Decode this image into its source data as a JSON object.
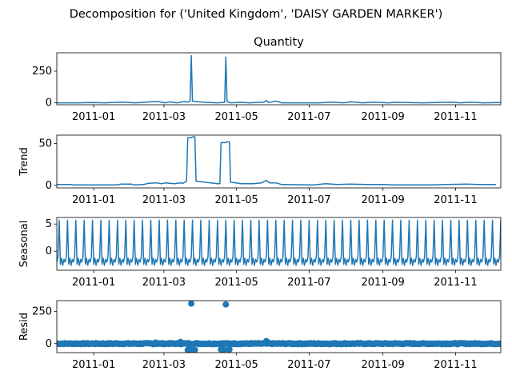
{
  "figure": {
    "suptitle": "Decomposition for ('United Kingdom', 'DAISY GARDEN MARKER')"
  },
  "chart_data": [
    {
      "type": "line",
      "title": "Quantity",
      "ylabel": "",
      "xlim": [
        "2010-12-01",
        "2011-12-09"
      ],
      "ylim": [
        -15,
        395
      ],
      "yticks": [
        0,
        250
      ],
      "xticks": [
        "2011-01",
        "2011-03",
        "2011-05",
        "2011-07",
        "2011-09",
        "2011-11"
      ],
      "color": "#1f77b4",
      "points": [
        [
          "2010-12-01",
          0
        ],
        [
          "2010-12-20",
          0
        ],
        [
          "2010-12-28",
          2
        ],
        [
          "2011-01-10",
          0
        ],
        [
          "2011-01-25",
          6
        ],
        [
          "2011-02-05",
          0
        ],
        [
          "2011-02-18",
          8
        ],
        [
          "2011-02-24",
          10
        ],
        [
          "2011-03-02",
          0
        ],
        [
          "2011-03-06",
          8
        ],
        [
          "2011-03-12",
          0
        ],
        [
          "2011-03-18",
          10
        ],
        [
          "2011-03-21",
          5
        ],
        [
          "2011-03-23",
          12
        ],
        [
          "2011-03-24",
          372
        ],
        [
          "2011-03-25",
          12
        ],
        [
          "2011-03-28",
          10
        ],
        [
          "2011-04-05",
          4
        ],
        [
          "2011-04-15",
          0
        ],
        [
          "2011-04-21",
          4
        ],
        [
          "2011-04-22",
          360
        ],
        [
          "2011-04-23",
          10
        ],
        [
          "2011-04-26",
          0
        ],
        [
          "2011-05-04",
          4
        ],
        [
          "2011-05-12",
          0
        ],
        [
          "2011-05-24",
          6
        ],
        [
          "2011-05-26",
          18
        ],
        [
          "2011-05-28",
          2
        ],
        [
          "2011-06-03",
          14
        ],
        [
          "2011-06-08",
          0
        ],
        [
          "2011-07-10",
          0
        ],
        [
          "2011-07-20",
          6
        ],
        [
          "2011-07-30",
          0
        ],
        [
          "2011-08-05",
          8
        ],
        [
          "2011-08-15",
          0
        ],
        [
          "2011-08-25",
          6
        ],
        [
          "2011-09-05",
          0
        ],
        [
          "2011-09-12",
          4
        ],
        [
          "2011-10-05",
          0
        ],
        [
          "2011-10-28",
          6
        ],
        [
          "2011-11-05",
          0
        ],
        [
          "2011-11-14",
          6
        ],
        [
          "2011-11-24",
          0
        ],
        [
          "2011-12-09",
          2
        ]
      ]
    },
    {
      "type": "line",
      "title": "",
      "ylabel": "Trend",
      "xlim": [
        "2010-12-01",
        "2011-12-09"
      ],
      "ylim": [
        -3,
        60
      ],
      "yticks": [
        0,
        50
      ],
      "xticks": [
        "2011-01",
        "2011-03",
        "2011-05",
        "2011-07",
        "2011-09",
        "2011-11"
      ],
      "color": "#1f77b4",
      "points": [
        [
          "2010-12-01",
          1
        ],
        [
          "2010-12-12",
          1
        ],
        [
          "2010-12-15",
          0.5
        ],
        [
          "2011-01-20",
          0.5
        ],
        [
          "2011-01-24",
          1.5
        ],
        [
          "2011-02-02",
          1.5
        ],
        [
          "2011-02-04",
          0.5
        ],
        [
          "2011-02-12",
          1
        ],
        [
          "2011-02-16",
          2.5
        ],
        [
          "2011-02-23",
          3
        ],
        [
          "2011-02-27",
          2
        ],
        [
          "2011-03-02",
          3
        ],
        [
          "2011-03-10",
          2
        ],
        [
          "2011-03-14",
          3
        ],
        [
          "2011-03-17",
          2.5
        ],
        [
          "2011-03-20",
          5
        ],
        [
          "2011-03-21",
          57
        ],
        [
          "2011-03-24",
          57
        ],
        [
          "2011-03-25",
          58
        ],
        [
          "2011-03-27",
          58
        ],
        [
          "2011-03-28",
          5
        ],
        [
          "2011-04-15",
          2
        ],
        [
          "2011-04-17",
          2
        ],
        [
          "2011-04-18",
          51
        ],
        [
          "2011-04-22",
          51
        ],
        [
          "2011-04-23",
          52
        ],
        [
          "2011-04-25",
          52
        ],
        [
          "2011-04-26",
          4
        ],
        [
          "2011-05-05",
          2
        ],
        [
          "2011-05-15",
          2
        ],
        [
          "2011-05-22",
          3
        ],
        [
          "2011-05-26",
          6
        ],
        [
          "2011-05-29",
          3
        ],
        [
          "2011-06-03",
          3
        ],
        [
          "2011-06-08",
          1
        ],
        [
          "2011-07-05",
          0.5
        ],
        [
          "2011-07-15",
          2
        ],
        [
          "2011-07-25",
          1
        ],
        [
          "2011-08-05",
          1.5
        ],
        [
          "2011-08-18",
          1
        ],
        [
          "2011-09-01",
          1
        ],
        [
          "2011-09-10",
          0.5
        ],
        [
          "2011-10-10",
          0.5
        ],
        [
          "2011-10-25",
          1
        ],
        [
          "2011-11-10",
          1.5
        ],
        [
          "2011-11-20",
          1
        ],
        [
          "2011-12-05",
          1
        ]
      ]
    },
    {
      "type": "line",
      "title": "",
      "ylabel": "Seasonal",
      "xlim": [
        "2010-12-01",
        "2011-12-09"
      ],
      "ylim": [
        -3.5,
        6.2
      ],
      "yticks": [
        0,
        5
      ],
      "xticks": [
        "2011-01",
        "2011-03",
        "2011-05",
        "2011-07",
        "2011-09",
        "2011-11"
      ],
      "color": "#1f77b4",
      "period_days": 7,
      "cycle": [
        -2.0,
        -1.0,
        5.7,
        -2.4,
        -1.3,
        -2.6,
        -1.5
      ]
    },
    {
      "type": "scatter",
      "title": "",
      "ylabel": "Resid",
      "xlim": [
        "2010-12-01",
        "2011-12-09"
      ],
      "ylim": [
        -70,
        335
      ],
      "yticks": [
        0,
        250
      ],
      "xticks": [
        "2011-01",
        "2011-03",
        "2011-05",
        "2011-07",
        "2011-09",
        "2011-11"
      ],
      "color": "#1f77b4",
      "baseline_range": [
        -4,
        4
      ],
      "outliers": [
        [
          "2011-03-24",
          312
        ],
        [
          "2011-04-22",
          306
        ],
        [
          "2011-03-21",
          -50
        ],
        [
          "2011-03-22",
          -52
        ],
        [
          "2011-03-23",
          -49
        ],
        [
          "2011-03-26",
          -51
        ],
        [
          "2011-03-27",
          -48
        ],
        [
          "2011-04-18",
          -46
        ],
        [
          "2011-04-19",
          -49
        ],
        [
          "2011-04-20",
          -47
        ],
        [
          "2011-04-24",
          -48
        ],
        [
          "2011-04-25",
          -46
        ],
        [
          "2011-05-26",
          20
        ],
        [
          "2011-03-15",
          12
        ],
        [
          "2011-02-22",
          8
        ]
      ]
    }
  ]
}
